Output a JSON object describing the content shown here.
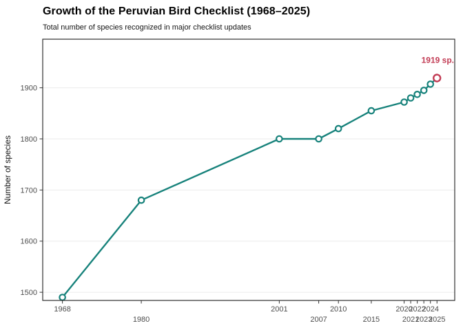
{
  "title": "Growth of the Peruvian Bird Checklist (1968–2025)",
  "subtitle": "Total number of species recognized in major checklist updates",
  "annotation": "1919 sp.",
  "colors": {
    "line": "#17827B",
    "highlight": "#C23B54",
    "grid": "#EBEBEB",
    "border": "#2E2E2E",
    "tick": "#333333",
    "tick_label": "#4D4D4D"
  },
  "chart_data": {
    "type": "line",
    "title": "Growth of the Peruvian Bird Checklist (1968–2025)",
    "subtitle": "Total number of species recognized in major checklist updates",
    "xlabel": "",
    "ylabel": "Number of species",
    "x": [
      1968,
      1980,
      2001,
      2007,
      2010,
      2015,
      2020,
      2021,
      2022,
      2023,
      2024,
      2025
    ],
    "y": [
      1490,
      1680,
      1800,
      1800,
      1820,
      1855,
      1872,
      1880,
      1887,
      1895,
      1907,
      1919
    ],
    "highlight_last_point": true,
    "annotation_text": "1919 sp.",
    "annotation_target": {
      "x": 2025,
      "y": 1919
    },
    "xlim": [
      1965.0,
      2027.7
    ],
    "ylim": [
      1484,
      1995
    ],
    "yticks": [
      1500,
      1600,
      1700,
      1800,
      1900
    ],
    "xticks": [
      {
        "year": 1968,
        "label": "1968",
        "row": 0
      },
      {
        "year": 1980,
        "label": "1980",
        "row": 1
      },
      {
        "year": 2001,
        "label": "2001",
        "row": 0
      },
      {
        "year": 2007,
        "label": "2007",
        "row": 1
      },
      {
        "year": 2010,
        "label": "2010",
        "row": 0
      },
      {
        "year": 2015,
        "label": "2015",
        "row": 1
      },
      {
        "year": 2020,
        "label": "2020",
        "row": 0
      },
      {
        "year": 2021,
        "label": "2021",
        "row": 1
      },
      {
        "year": 2022,
        "label": "2022",
        "row": 0
      },
      {
        "year": 2023,
        "label": "2023",
        "row": 1
      },
      {
        "year": 2024,
        "label": "2024",
        "row": 0
      },
      {
        "year": 2025,
        "label": "2025",
        "row": 1
      }
    ],
    "grid": "horizontal-major-only",
    "legend": "none"
  }
}
